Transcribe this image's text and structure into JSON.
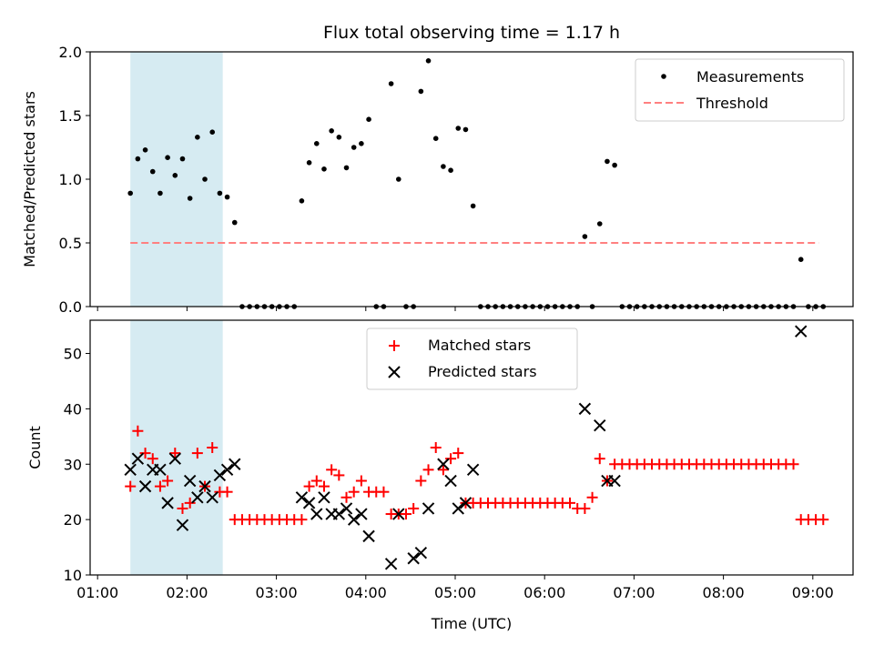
{
  "chart_data": [
    {
      "type": "scatter",
      "title": "Flux total observing time = 1.17 h",
      "xlabel": "",
      "ylabel": "Matched/Predicted stars",
      "ylim": [
        0,
        2.0
      ],
      "yticks": [
        "0.0",
        "0.5",
        "1.0",
        "1.5",
        "2.0"
      ],
      "xlim": [
        "00:55",
        "09:27"
      ],
      "shaded_region": [
        "01:22",
        "02:24"
      ],
      "legend": "top-right",
      "series": [
        {
          "name": "Measurements",
          "marker": "dot",
          "color": "#000000",
          "points": [
            [
              "01:22",
              0.89
            ],
            [
              "01:27",
              1.16
            ],
            [
              "01:32",
              1.23
            ],
            [
              "01:37",
              1.06
            ],
            [
              "01:42",
              0.89
            ],
            [
              "01:47",
              1.17
            ],
            [
              "01:52",
              1.03
            ],
            [
              "01:57",
              1.16
            ],
            [
              "02:02",
              0.85
            ],
            [
              "02:07",
              1.33
            ],
            [
              "02:12",
              1.0
            ],
            [
              "02:17",
              1.37
            ],
            [
              "02:22",
              0.89
            ],
            [
              "02:27",
              0.86
            ],
            [
              "02:32",
              0.66
            ],
            [
              "02:37",
              0
            ],
            [
              "02:42",
              0
            ],
            [
              "02:47",
              0
            ],
            [
              "02:52",
              0
            ],
            [
              "02:57",
              0
            ],
            [
              "03:02",
              0
            ],
            [
              "03:07",
              0
            ],
            [
              "03:12",
              0
            ],
            [
              "03:17",
              0.83
            ],
            [
              "03:22",
              1.13
            ],
            [
              "03:27",
              1.28
            ],
            [
              "03:32",
              1.08
            ],
            [
              "03:37",
              1.38
            ],
            [
              "03:42",
              1.33
            ],
            [
              "03:47",
              1.09
            ],
            [
              "03:52",
              1.25
            ],
            [
              "03:57",
              1.28
            ],
            [
              "04:02",
              1.47
            ],
            [
              "04:07",
              0
            ],
            [
              "04:12",
              0
            ],
            [
              "04:17",
              1.75
            ],
            [
              "04:22",
              1.0
            ],
            [
              "04:27",
              0
            ],
            [
              "04:32",
              0
            ],
            [
              "04:37",
              1.69
            ],
            [
              "04:42",
              1.93
            ],
            [
              "04:47",
              1.32
            ],
            [
              "04:52",
              1.1
            ],
            [
              "04:57",
              1.07
            ],
            [
              "05:02",
              1.4
            ],
            [
              "05:07",
              1.39
            ],
            [
              "05:12",
              0.79
            ],
            [
              "05:17",
              0
            ],
            [
              "05:22",
              0
            ],
            [
              "05:27",
              0
            ],
            [
              "05:32",
              0
            ],
            [
              "05:37",
              0
            ],
            [
              "05:42",
              0
            ],
            [
              "05:47",
              0
            ],
            [
              "05:52",
              0
            ],
            [
              "05:57",
              0
            ],
            [
              "06:02",
              0
            ],
            [
              "06:07",
              0
            ],
            [
              "06:12",
              0
            ],
            [
              "06:17",
              0
            ],
            [
              "06:22",
              0
            ],
            [
              "06:27",
              0.55
            ],
            [
              "06:32",
              0
            ],
            [
              "06:37",
              0.65
            ],
            [
              "06:42",
              1.14
            ],
            [
              "06:47",
              1.11
            ],
            [
              "06:52",
              0
            ],
            [
              "06:57",
              0
            ],
            [
              "07:02",
              0
            ],
            [
              "07:07",
              0
            ],
            [
              "07:12",
              0
            ],
            [
              "07:17",
              0
            ],
            [
              "07:22",
              0
            ],
            [
              "07:27",
              0
            ],
            [
              "07:32",
              0
            ],
            [
              "07:37",
              0
            ],
            [
              "07:42",
              0
            ],
            [
              "07:47",
              0
            ],
            [
              "07:52",
              0
            ],
            [
              "07:57",
              0
            ],
            [
              "08:02",
              0
            ],
            [
              "08:07",
              0
            ],
            [
              "08:12",
              0
            ],
            [
              "08:17",
              0
            ],
            [
              "08:22",
              0
            ],
            [
              "08:27",
              0
            ],
            [
              "08:32",
              0
            ],
            [
              "08:37",
              0
            ],
            [
              "08:42",
              0
            ],
            [
              "08:47",
              0
            ],
            [
              "08:52",
              0.37
            ],
            [
              "08:57",
              0
            ],
            [
              "09:02",
              0
            ],
            [
              "09:07",
              0
            ]
          ]
        },
        {
          "name": "Threshold",
          "style": "dashed",
          "color": "#ff8080",
          "x": [
            "01:22",
            "09:04"
          ],
          "y": [
            0.5,
            0.5
          ]
        }
      ]
    },
    {
      "type": "scatter",
      "title": "",
      "xlabel": "Time (UTC)",
      "ylabel": "Count",
      "ylim": [
        10,
        56
      ],
      "yticks": [
        "10",
        "20",
        "30",
        "40",
        "50"
      ],
      "xlim": [
        "00:55",
        "09:27"
      ],
      "xticks": [
        "01:00",
        "02:00",
        "03:00",
        "04:00",
        "05:00",
        "06:00",
        "07:00",
        "08:00",
        "09:00"
      ],
      "shaded_region": [
        "01:22",
        "02:24"
      ],
      "legend": "top-center",
      "series": [
        {
          "name": "Matched stars",
          "marker": "plus",
          "color": "#ff0000",
          "points": [
            [
              "01:22",
              26
            ],
            [
              "01:27",
              36
            ],
            [
              "01:32",
              32
            ],
            [
              "01:37",
              31
            ],
            [
              "01:42",
              26
            ],
            [
              "01:47",
              27
            ],
            [
              "01:52",
              32
            ],
            [
              "01:57",
              22
            ],
            [
              "02:02",
              23
            ],
            [
              "02:07",
              32
            ],
            [
              "02:12",
              26
            ],
            [
              "02:17",
              33
            ],
            [
              "02:22",
              25
            ],
            [
              "02:27",
              25
            ],
            [
              "02:32",
              20
            ],
            [
              "02:37",
              20
            ],
            [
              "02:42",
              20
            ],
            [
              "02:47",
              20
            ],
            [
              "02:52",
              20
            ],
            [
              "02:57",
              20
            ],
            [
              "03:02",
              20
            ],
            [
              "03:07",
              20
            ],
            [
              "03:12",
              20
            ],
            [
              "03:17",
              20
            ],
            [
              "03:22",
              26
            ],
            [
              "03:27",
              27
            ],
            [
              "03:32",
              26
            ],
            [
              "03:37",
              29
            ],
            [
              "03:42",
              28
            ],
            [
              "03:47",
              24
            ],
            [
              "03:52",
              25
            ],
            [
              "03:57",
              27
            ],
            [
              "04:02",
              25
            ],
            [
              "04:07",
              25
            ],
            [
              "04:12",
              25
            ],
            [
              "04:17",
              21
            ],
            [
              "04:22",
              21
            ],
            [
              "04:27",
              21
            ],
            [
              "04:32",
              22
            ],
            [
              "04:37",
              27
            ],
            [
              "04:42",
              29
            ],
            [
              "04:47",
              33
            ],
            [
              "04:52",
              29
            ],
            [
              "04:57",
              31
            ],
            [
              "05:02",
              32
            ],
            [
              "05:07",
              23
            ],
            [
              "05:12",
              23
            ],
            [
              "05:17",
              23
            ],
            [
              "05:22",
              23
            ],
            [
              "05:27",
              23
            ],
            [
              "05:32",
              23
            ],
            [
              "05:37",
              23
            ],
            [
              "05:42",
              23
            ],
            [
              "05:47",
              23
            ],
            [
              "05:52",
              23
            ],
            [
              "05:57",
              23
            ],
            [
              "06:02",
              23
            ],
            [
              "06:07",
              23
            ],
            [
              "06:12",
              23
            ],
            [
              "06:17",
              23
            ],
            [
              "06:22",
              22
            ],
            [
              "06:27",
              22
            ],
            [
              "06:32",
              24
            ],
            [
              "06:37",
              31
            ],
            [
              "06:42",
              27
            ],
            [
              "06:47",
              30
            ],
            [
              "06:52",
              30
            ],
            [
              "06:57",
              30
            ],
            [
              "07:02",
              30
            ],
            [
              "07:07",
              30
            ],
            [
              "07:12",
              30
            ],
            [
              "07:17",
              30
            ],
            [
              "07:22",
              30
            ],
            [
              "07:27",
              30
            ],
            [
              "07:32",
              30
            ],
            [
              "07:37",
              30
            ],
            [
              "07:42",
              30
            ],
            [
              "07:47",
              30
            ],
            [
              "07:52",
              30
            ],
            [
              "07:57",
              30
            ],
            [
              "08:02",
              30
            ],
            [
              "08:07",
              30
            ],
            [
              "08:12",
              30
            ],
            [
              "08:17",
              30
            ],
            [
              "08:22",
              30
            ],
            [
              "08:27",
              30
            ],
            [
              "08:32",
              30
            ],
            [
              "08:37",
              30
            ],
            [
              "08:42",
              30
            ],
            [
              "08:47",
              30
            ],
            [
              "08:52",
              20
            ],
            [
              "08:57",
              20
            ],
            [
              "09:02",
              20
            ],
            [
              "09:07",
              20
            ]
          ]
        },
        {
          "name": "Predicted stars",
          "marker": "x",
          "color": "#000000",
          "points": [
            [
              "01:22",
              29
            ],
            [
              "01:27",
              31
            ],
            [
              "01:32",
              26
            ],
            [
              "01:37",
              29
            ],
            [
              "01:42",
              29
            ],
            [
              "01:47",
              23
            ],
            [
              "01:52",
              31
            ],
            [
              "01:57",
              19
            ],
            [
              "02:02",
              27
            ],
            [
              "02:07",
              24
            ],
            [
              "02:12",
              26
            ],
            [
              "02:17",
              24
            ],
            [
              "02:22",
              28
            ],
            [
              "02:27",
              29
            ],
            [
              "02:32",
              30
            ],
            [
              "03:17",
              24
            ],
            [
              "03:22",
              23
            ],
            [
              "03:27",
              21
            ],
            [
              "03:32",
              24
            ],
            [
              "03:37",
              21
            ],
            [
              "03:42",
              21
            ],
            [
              "03:47",
              22
            ],
            [
              "03:52",
              20
            ],
            [
              "03:57",
              21
            ],
            [
              "04:02",
              17
            ],
            [
              "04:17",
              12
            ],
            [
              "04:22",
              21
            ],
            [
              "04:32",
              13
            ],
            [
              "04:37",
              14
            ],
            [
              "04:42",
              22
            ],
            [
              "04:52",
              30
            ],
            [
              "04:57",
              27
            ],
            [
              "05:02",
              22
            ],
            [
              "05:07",
              23
            ],
            [
              "05:12",
              29
            ],
            [
              "06:27",
              40
            ],
            [
              "06:37",
              37
            ],
            [
              "06:42",
              27
            ],
            [
              "06:47",
              27
            ],
            [
              "08:52",
              54
            ]
          ]
        }
      ]
    }
  ]
}
